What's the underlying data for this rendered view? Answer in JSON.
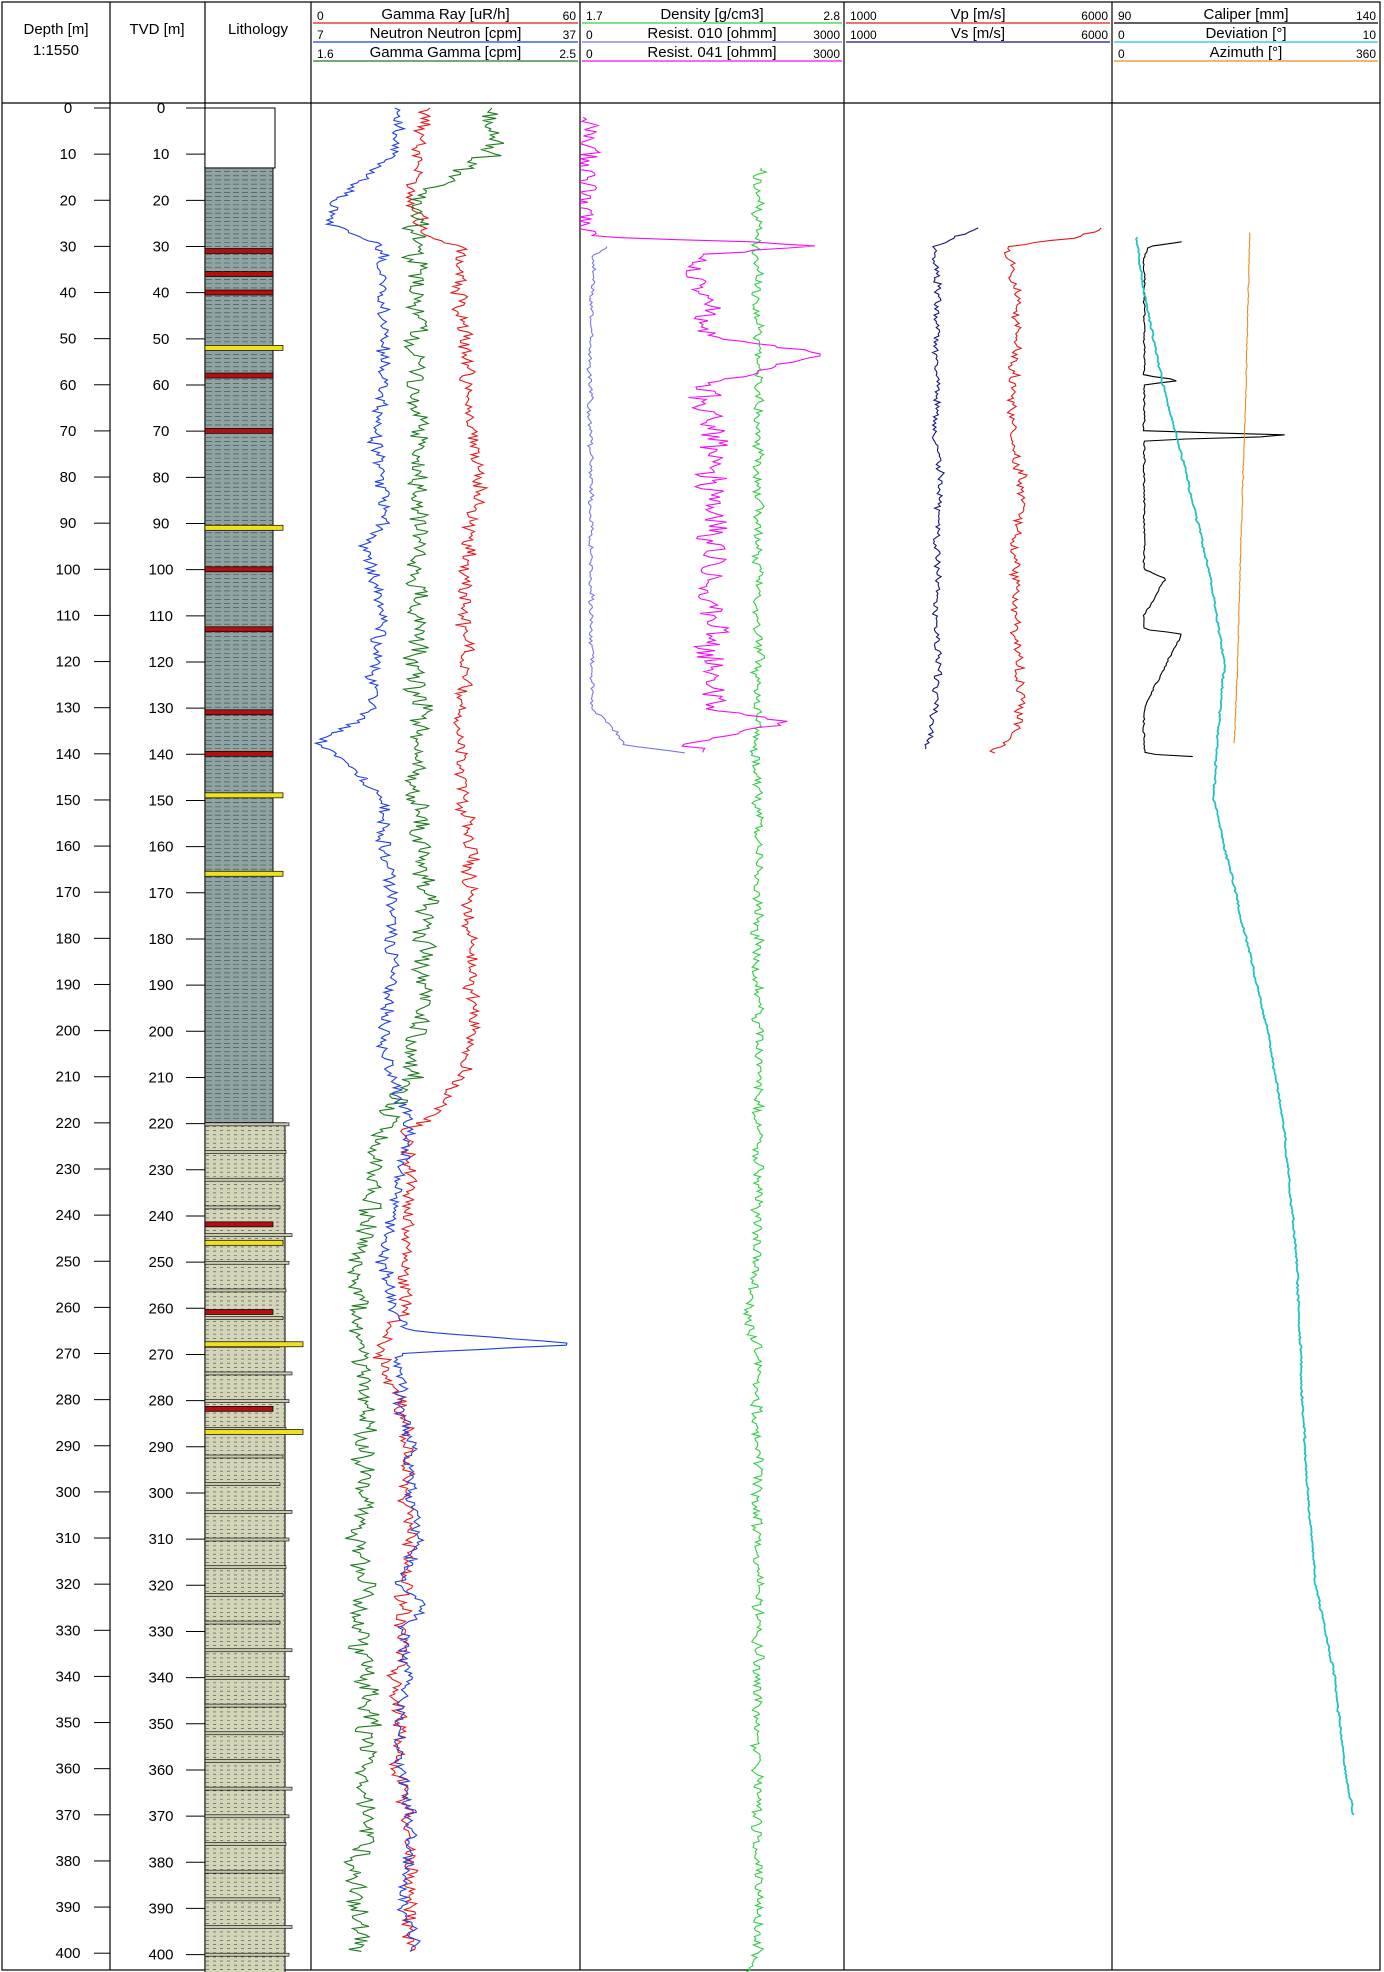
{
  "columns": {
    "depth": {
      "title": "Depth [m]",
      "scale": "1:1550"
    },
    "tvd": {
      "title": "TVD [m]"
    },
    "lithology": {
      "title": "Lithology"
    },
    "track1": {
      "curves": [
        {
          "name": "Gamma Ray [uR/h]",
          "min": "0",
          "max": "60",
          "color": "#e31a1c"
        },
        {
          "name": "Neutron Neutron [cpm]",
          "min": "7",
          "max": "37",
          "color": "#1f3fe0"
        },
        {
          "name": "Gamma Gamma [cpm]",
          "min": "1.6",
          "max": "2.5",
          "color": "#1f7a1f"
        }
      ]
    },
    "track2": {
      "curves": [
        {
          "name": "Density [g/cm3]",
          "min": "1.7",
          "max": "2.8",
          "color": "#33cc44"
        },
        {
          "name": "Resist. 010 [ohmm]",
          "min": "0",
          "max": "3000",
          "color": "#7777ee"
        },
        {
          "name": "Resist. 041 [ohmm]",
          "min": "0",
          "max": "3000",
          "color": "#ee11ee"
        }
      ]
    },
    "track3": {
      "curves": [
        {
          "name": "Vp [m/s]",
          "min": "1000",
          "max": "6000",
          "color": "#e31a1c"
        },
        {
          "name": "Vs [m/s]",
          "min": "1000",
          "max": "6000",
          "color": "#141480"
        }
      ]
    },
    "track4": {
      "curves": [
        {
          "name": "Caliper [mm]",
          "min": "90",
          "max": "140",
          "color": "#000000"
        },
        {
          "name": "Deviation [°]",
          "min": "0",
          "max": "10",
          "color": "#22c3c3"
        },
        {
          "name": "Azimuth [°]",
          "min": "0",
          "max": "360",
          "color": "#f08a1c"
        }
      ]
    }
  },
  "chart_data": {
    "type": "line",
    "depth_unit": "m",
    "depth_range": [
      0,
      405
    ],
    "depth_ticks": [
      0,
      10,
      20,
      30,
      40,
      50,
      60,
      70,
      80,
      90,
      100,
      110,
      120,
      130,
      140,
      150,
      160,
      170,
      180,
      190,
      200,
      210,
      220,
      230,
      240,
      250,
      260,
      270,
      280,
      290,
      300,
      310,
      320,
      330,
      340,
      350,
      360,
      370,
      380,
      390,
      400
    ],
    "tvd_ticks": [
      0,
      10,
      20,
      30,
      40,
      50,
      60,
      70,
      80,
      90,
      100,
      110,
      120,
      130,
      140,
      150,
      160,
      170,
      180,
      190,
      200,
      210,
      220,
      230,
      240,
      250,
      260,
      270,
      280,
      290,
      300,
      310,
      320,
      330,
      340,
      350,
      360,
      370,
      380,
      390,
      400
    ],
    "lithology": [
      {
        "top": 13,
        "base": 220,
        "rock": "shale",
        "color": "#8fa3a3"
      },
      {
        "top": 220,
        "base": 405,
        "rock": "sandstone",
        "color": "#d4d4b8"
      }
    ],
    "lithology_beds": [
      {
        "depth": 31,
        "color": "#b01010"
      },
      {
        "depth": 36,
        "color": "#b01010"
      },
      {
        "depth": 40,
        "color": "#b01010"
      },
      {
        "depth": 52,
        "color": "#f0e020"
      },
      {
        "depth": 58,
        "color": "#b01010"
      },
      {
        "depth": 70,
        "color": "#b01010"
      },
      {
        "depth": 91,
        "color": "#f0e020"
      },
      {
        "depth": 100,
        "color": "#b01010"
      },
      {
        "depth": 113,
        "color": "#b01010"
      },
      {
        "depth": 131,
        "color": "#b01010"
      },
      {
        "depth": 140,
        "color": "#b01010"
      },
      {
        "depth": 149,
        "color": "#f0e020"
      },
      {
        "depth": 166,
        "color": "#f0e020"
      },
      {
        "depth": 242,
        "color": "#b01010"
      },
      {
        "depth": 246,
        "color": "#f0e020"
      },
      {
        "depth": 261,
        "color": "#b01010"
      },
      {
        "depth": 268,
        "color": "#f0e020"
      },
      {
        "depth": 282,
        "color": "#b01010"
      },
      {
        "depth": 287,
        "color": "#f0e020"
      }
    ],
    "series": [
      {
        "name": "Gamma Ray [uR/h]",
        "track": 1,
        "min": 0,
        "max": 60,
        "depth": [
          0,
          10,
          20,
          28,
          30,
          40,
          50,
          60,
          70,
          80,
          90,
          100,
          110,
          120,
          130,
          140,
          150,
          160,
          170,
          180,
          190,
          200,
          210,
          219,
          222,
          230,
          240,
          250,
          260,
          270,
          280,
          290,
          300,
          310,
          320,
          330,
          340,
          350,
          360,
          370,
          380,
          390,
          400
        ],
        "values": [
          26,
          24,
          23,
          26,
          34,
          33,
          34,
          35,
          36,
          38,
          36,
          35,
          34,
          35,
          33,
          33,
          34,
          36,
          35,
          35,
          36,
          36,
          34,
          26,
          21,
          22,
          22,
          21,
          21,
          15,
          20,
          22,
          21,
          22,
          21,
          20,
          19,
          20,
          19,
          21,
          22,
          22,
          22
        ]
      },
      {
        "name": "Neutron Neutron [cpm]",
        "track": 1,
        "min": 7,
        "max": 37,
        "depth": [
          0,
          10,
          20,
          25,
          30,
          40,
          50,
          60,
          70,
          80,
          90,
          95,
          100,
          110,
          120,
          130,
          138,
          140,
          150,
          160,
          170,
          180,
          190,
          200,
          210,
          220,
          230,
          240,
          250,
          260,
          265,
          268,
          270,
          280,
          290,
          300,
          310,
          320,
          325,
          330,
          340,
          350,
          360,
          370,
          380,
          390,
          400
        ],
        "values": [
          17,
          16,
          10,
          9,
          15,
          15,
          15,
          15,
          14,
          15,
          15,
          13,
          14,
          15,
          14,
          14,
          8,
          10,
          15,
          15,
          16,
          16,
          16,
          15,
          16,
          18,
          17,
          16,
          15,
          16,
          18,
          37,
          17,
          17,
          18,
          18,
          19,
          17,
          20,
          17,
          18,
          17,
          17,
          18,
          18,
          17,
          19
        ]
      },
      {
        "name": "Gamma Gamma [cpm]",
        "track": 1,
        "min": 1.6,
        "max": 2.5,
        "depth": [
          0,
          10,
          20,
          30,
          40,
          50,
          60,
          70,
          80,
          90,
          100,
          110,
          120,
          130,
          140,
          150,
          160,
          170,
          180,
          190,
          200,
          210,
          220,
          230,
          240,
          250,
          260,
          270,
          280,
          290,
          300,
          310,
          320,
          330,
          340,
          350,
          360,
          370,
          380,
          390,
          400
        ],
        "values": [
          2.2,
          2.2,
          1.95,
          1.95,
          1.95,
          1.95,
          1.95,
          1.96,
          1.95,
          1.96,
          1.95,
          1.96,
          1.95,
          1.96,
          1.95,
          1.95,
          1.97,
          1.98,
          1.98,
          1.98,
          1.95,
          1.94,
          1.85,
          1.8,
          1.8,
          1.75,
          1.75,
          1.78,
          1.78,
          1.78,
          1.78,
          1.76,
          1.78,
          1.76,
          1.78,
          1.8,
          1.78,
          1.78,
          1.75,
          1.76,
          1.76
        ]
      },
      {
        "name": "Density [g/cm3]",
        "track": 2,
        "min": 1.7,
        "max": 2.8,
        "depth": [
          13,
          20,
          30,
          40,
          50,
          60,
          70,
          80,
          90,
          100,
          110,
          120,
          130,
          140,
          150,
          160,
          170,
          180,
          190,
          200,
          210,
          220,
          230,
          240,
          250,
          260,
          270,
          280,
          290,
          300,
          310,
          320,
          330,
          340,
          350,
          360,
          370,
          380,
          390,
          400,
          405
        ],
        "values": [
          2.45,
          2.44,
          2.44,
          2.44,
          2.45,
          2.44,
          2.44,
          2.44,
          2.44,
          2.44,
          2.44,
          2.44,
          2.44,
          2.43,
          2.44,
          2.44,
          2.44,
          2.44,
          2.44,
          2.44,
          2.44,
          2.44,
          2.44,
          2.44,
          2.44,
          2.4,
          2.44,
          2.44,
          2.44,
          2.44,
          2.44,
          2.44,
          2.44,
          2.44,
          2.44,
          2.44,
          2.44,
          2.44,
          2.44,
          2.44,
          2.4
        ]
      },
      {
        "name": "Resist. 010 [ohmm]",
        "track": 2,
        "min": 0,
        "max": 3000,
        "depth": [
          30,
          32,
          40,
          50,
          60,
          70,
          80,
          90,
          100,
          110,
          120,
          130,
          135,
          138,
          140
        ],
        "values": [
          300,
          150,
          140,
          120,
          110,
          120,
          130,
          120,
          130,
          125,
          135,
          130,
          400,
          500,
          1300
        ]
      },
      {
        "name": "Resist. 041 [ohmm]",
        "track": 2,
        "min": 0,
        "max": 3000,
        "depth": [
          2,
          28,
          29,
          30,
          32,
          40,
          50,
          53,
          60,
          70,
          80,
          90,
          100,
          110,
          120,
          130,
          133,
          138,
          140
        ],
        "values": [
          60,
          80,
          1900,
          2700,
          1300,
          1400,
          1500,
          2800,
          1400,
          1500,
          1500,
          1500,
          1500,
          1500,
          1500,
          1500,
          2400,
          1200,
          1400
        ]
      },
      {
        "name": "Vp [m/s]",
        "track": 3,
        "min": 1000,
        "max": 6000,
        "depth": [
          26,
          28,
          30,
          40,
          50,
          60,
          70,
          80,
          90,
          100,
          110,
          120,
          130,
          135,
          139,
          140
        ],
        "values": [
          5800,
          5400,
          4100,
          4200,
          4250,
          4150,
          4100,
          4300,
          4250,
          4200,
          4200,
          4250,
          4300,
          4200,
          3800,
          3800
        ]
      },
      {
        "name": "Vs [m/s]",
        "track": 3,
        "min": 1000,
        "max": 6000,
        "depth": [
          26,
          28,
          30,
          40,
          50,
          60,
          70,
          80,
          90,
          100,
          110,
          120,
          130,
          135,
          139
        ],
        "values": [
          3500,
          3050,
          2700,
          2750,
          2700,
          2750,
          2700,
          2800,
          2750,
          2750,
          2700,
          2750,
          2700,
          2650,
          2500
        ]
      },
      {
        "name": "Caliper [mm]",
        "track": 4,
        "min": 90,
        "max": 140,
        "depth": [
          29,
          30,
          32,
          35,
          50,
          58,
          59,
          60,
          64,
          70,
          71,
          72,
          75,
          90,
          100,
          102,
          110,
          113,
          114,
          130,
          138,
          140,
          141
        ],
        "values": [
          103,
          97,
          96,
          96,
          96,
          96,
          103,
          96,
          96,
          96,
          127,
          96,
          96,
          96,
          96,
          100,
          96,
          96,
          103,
          96,
          96,
          96,
          111
        ]
      },
      {
        "name": "Deviation [°]",
        "track": 4,
        "min": 0,
        "max": 10,
        "depth": [
          28,
          40,
          60,
          80,
          100,
          120,
          140,
          150,
          170,
          200,
          220,
          250,
          280,
          300,
          320,
          340,
          360,
          370
        ],
        "values": [
          0.9,
          1.2,
          1.9,
          2.8,
          3.6,
          4.2,
          3.9,
          3.8,
          4.6,
          5.8,
          6.4,
          6.9,
          7.1,
          7.3,
          7.6,
          8.3,
          8.7,
          9.0
        ]
      },
      {
        "name": "Azimuth [°]",
        "track": 4,
        "min": 0,
        "max": 360,
        "depth": [
          27,
          40,
          60,
          80,
          100,
          120,
          135,
          138
        ],
        "values": [
          185,
          183,
          180,
          176,
          172,
          169,
          165,
          164
        ]
      }
    ]
  }
}
